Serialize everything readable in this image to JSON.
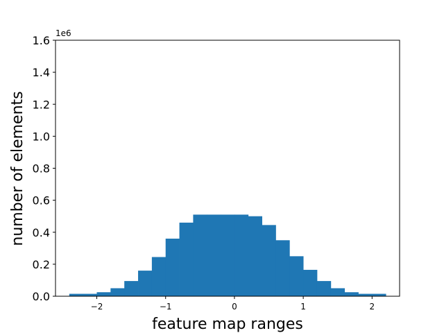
{
  "chart_data": {
    "type": "bar",
    "title": "",
    "xlabel": "feature map ranges",
    "ylabel": "number of elements",
    "y_offset_label": "1e6",
    "xlim": [
      -2.6,
      2.4
    ],
    "ylim": [
      0,
      1.6
    ],
    "xticks": [
      -2,
      -1,
      0,
      1,
      2
    ],
    "xtick_labels": [
      "−2",
      "−1",
      "0",
      "1",
      "2"
    ],
    "yticks": [
      0.0,
      0.2,
      0.4,
      0.6,
      0.8,
      1.0,
      1.2,
      1.4,
      1.6
    ],
    "ytick_labels": [
      "0.0",
      "0.2",
      "0.4",
      "0.6",
      "0.8",
      "1.0",
      "1.2",
      "1.4",
      "1.6"
    ],
    "bin_edges": [
      -2.4,
      -2.2,
      -2.0,
      -1.8,
      -1.6,
      -1.4,
      -1.2,
      -1.0,
      -0.8,
      -0.6,
      -0.4,
      -0.2,
      0.0,
      0.2,
      0.4,
      0.6,
      0.8,
      1.0,
      1.2,
      1.4,
      1.6,
      1.8,
      2.0,
      2.2
    ],
    "values": [
      0.015,
      0.015,
      0.025,
      0.05,
      0.095,
      0.16,
      0.245,
      0.36,
      0.46,
      0.51,
      0.51,
      0.51,
      0.51,
      0.5,
      0.445,
      0.35,
      0.25,
      0.165,
      0.095,
      0.05,
      0.025,
      0.015,
      0.015
    ],
    "bar_color": "#1f77b4",
    "grid": false,
    "legend": "none"
  }
}
